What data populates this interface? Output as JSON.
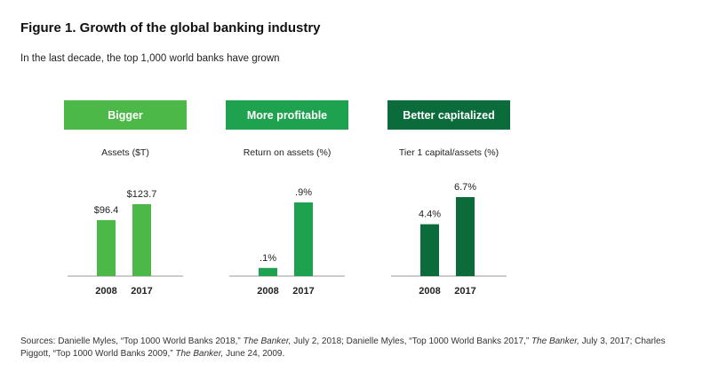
{
  "title": "Figure 1. Growth of the global banking industry",
  "subtitle": "In the last decade, the top 1,000 world banks have grown",
  "chart_data": [
    {
      "type": "bar",
      "header": "Bigger",
      "title": "Assets ($T)",
      "color": "#4cb847",
      "categories": [
        "2008",
        "2017"
      ],
      "values": [
        96.4,
        123.7
      ],
      "labels": [
        "$96.4",
        "$123.7"
      ]
    },
    {
      "type": "bar",
      "header": "More profitable",
      "title": "Return on assets (%)",
      "color": "#1ea24f",
      "categories": [
        "2008",
        "2017"
      ],
      "values": [
        0.1,
        0.9
      ],
      "labels": [
        ".1%",
        ".9%"
      ]
    },
    {
      "type": "bar",
      "header": "Better capitalized",
      "title": "Tier 1 capital/assets (%)",
      "color": "#0b6b3a",
      "categories": [
        "2008",
        "2017"
      ],
      "values": [
        4.4,
        6.7
      ],
      "labels": [
        "4.4%",
        "6.7%"
      ]
    }
  ],
  "sources": [
    {
      "text": "Sources: Danielle Myles, “Top 1000 World Banks 2018,” ",
      "italic": false
    },
    {
      "text": "The Banker,",
      "italic": true
    },
    {
      "text": " July 2, 2018; Danielle Myles, “Top 1000 World Banks 2017,” ",
      "italic": false
    },
    {
      "text": "The Banker,",
      "italic": true
    },
    {
      "text": " July 3, 2017; Charles Piggott, “Top 1000 World Banks 2009,” ",
      "italic": false
    },
    {
      "text": "The Banker,",
      "italic": true
    },
    {
      "text": " June 24, 2009.",
      "italic": false
    }
  ]
}
